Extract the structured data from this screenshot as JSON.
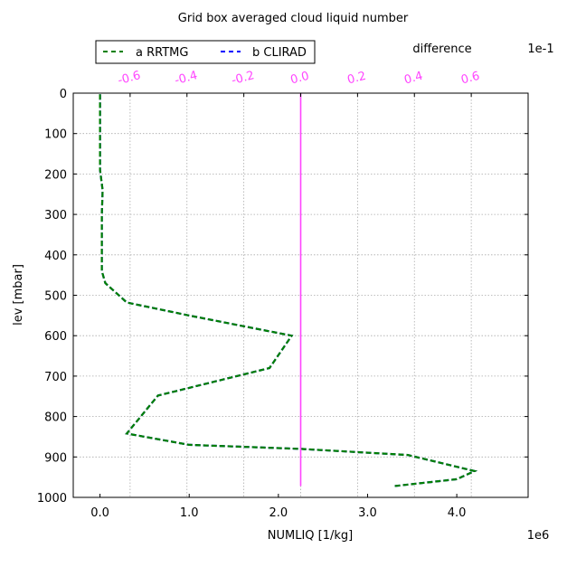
{
  "chart_data": {
    "type": "line",
    "title": "Grid box averaged cloud liquid number",
    "xlabel": "NUMLIQ [1/kg]",
    "ylabel": "lev [mbar]",
    "x_scale_label": "1e6",
    "xlim": [
      -0.3,
      4.8
    ],
    "x_ticks": [
      0.0,
      1.0,
      2.0,
      3.0,
      4.0
    ],
    "x_tick_labels": [
      "0.0",
      "1.0",
      "2.0",
      "3.0",
      "4.0"
    ],
    "ylim": [
      1000,
      0
    ],
    "y_ticks": [
      0,
      100,
      200,
      300,
      400,
      500,
      600,
      700,
      800,
      900,
      1000
    ],
    "y_tick_labels": [
      "0",
      "100",
      "200",
      "300",
      "400",
      "500",
      "600",
      "700",
      "800",
      "900",
      "1000"
    ],
    "grid": true,
    "legend_position": "top-left",
    "legend": [
      {
        "label": "a RRTMG",
        "color": "#008000",
        "dash": "dashed"
      },
      {
        "label": "b CLIRAD",
        "color": "#0000ff",
        "dash": "dashed"
      }
    ],
    "series": [
      {
        "name": "a RRTMG",
        "color": "#008000",
        "points": [
          [
            0.0,
            3
          ],
          [
            0.0,
            100
          ],
          [
            0.0,
            190
          ],
          [
            0.03,
            240
          ],
          [
            0.02,
            300
          ],
          [
            0.02,
            440
          ],
          [
            0.06,
            470
          ],
          [
            0.3,
            518
          ],
          [
            1.0,
            550
          ],
          [
            2.15,
            600
          ],
          [
            1.9,
            680
          ],
          [
            0.65,
            748
          ],
          [
            0.3,
            842
          ],
          [
            1.0,
            870
          ],
          [
            2.25,
            880
          ],
          [
            3.45,
            895
          ],
          [
            4.2,
            935
          ],
          [
            4.0,
            955
          ],
          [
            3.3,
            972
          ]
        ]
      },
      {
        "name": "b CLIRAD",
        "color": "#0000ff",
        "points": [
          [
            0.0,
            3
          ],
          [
            0.0,
            100
          ],
          [
            0.0,
            190
          ],
          [
            0.03,
            240
          ],
          [
            0.02,
            300
          ],
          [
            0.02,
            440
          ],
          [
            0.06,
            470
          ],
          [
            0.3,
            518
          ],
          [
            1.0,
            550
          ],
          [
            2.15,
            600
          ],
          [
            1.9,
            680
          ],
          [
            0.65,
            748
          ],
          [
            0.3,
            842
          ],
          [
            1.0,
            870
          ],
          [
            2.25,
            880
          ],
          [
            3.45,
            895
          ],
          [
            4.2,
            935
          ],
          [
            4.0,
            955
          ],
          [
            3.3,
            972
          ]
        ]
      }
    ],
    "difference_axis": {
      "label": "difference",
      "scale_label": "1e-1",
      "color": "#ff44ff",
      "xlim": [
        -0.8,
        0.8
      ],
      "ticks": [
        -0.6,
        -0.4,
        -0.2,
        0.0,
        0.2,
        0.4,
        0.6
      ],
      "tick_labels": [
        "-0.6",
        "-0.4",
        "-0.2",
        "0.0",
        "0.2",
        "0.4",
        "0.6"
      ],
      "points": [
        [
          0.0,
          0
        ],
        [
          0.0,
          972
        ]
      ]
    }
  }
}
